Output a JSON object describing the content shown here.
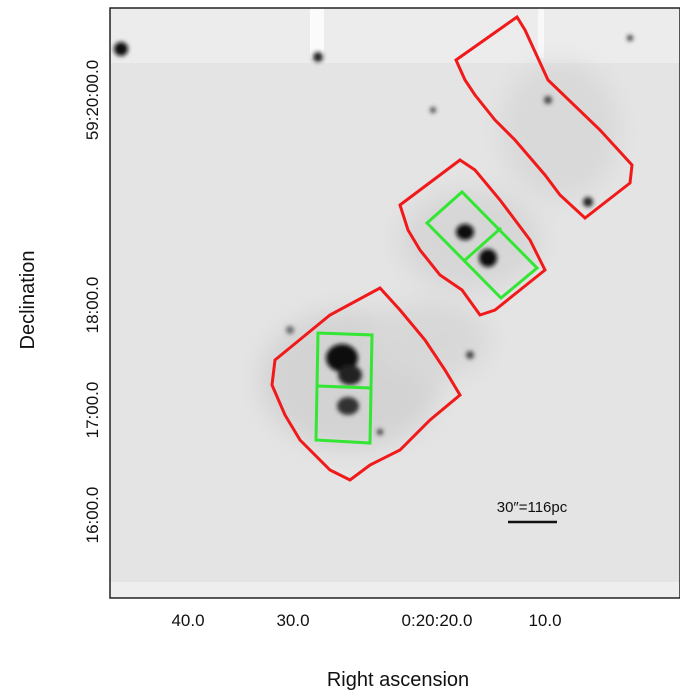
{
  "axes": {
    "x_title": "Right ascension",
    "y_title": "Declination",
    "x_ticks": [
      "40.0",
      "30.0",
      "0:20:20.0",
      "10.0"
    ],
    "y_ticks": [
      "59:20:00.0",
      "18:00.0",
      "17:00.0",
      "16:00.0"
    ]
  },
  "scale_bar": "30″=116pc"
}
